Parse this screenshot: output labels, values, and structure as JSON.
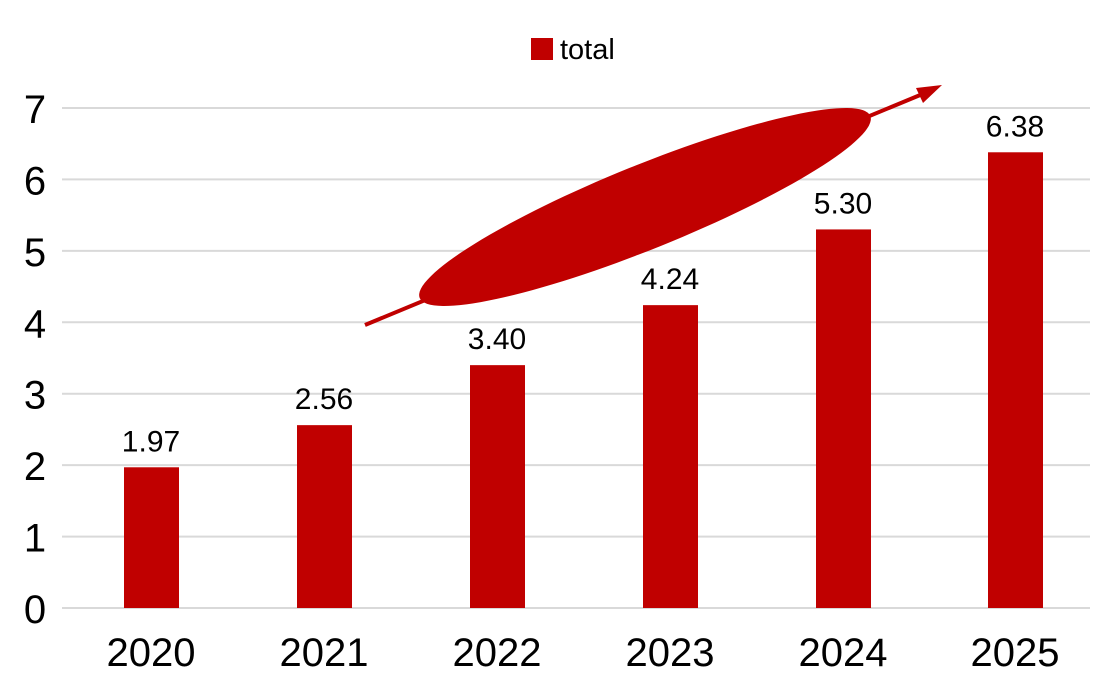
{
  "chart_data": {
    "type": "bar",
    "title": "",
    "xlabel": "",
    "ylabel": "",
    "categories": [
      "2020",
      "2021",
      "2022",
      "2023",
      "2024",
      "2025"
    ],
    "series": [
      {
        "name": "total",
        "values": [
          1.97,
          2.56,
          3.4,
          4.24,
          5.3,
          6.38
        ],
        "labels": [
          "1.97",
          "2.56",
          "3.40",
          "4.24",
          "5.30",
          "6.38"
        ]
      }
    ],
    "ylim": [
      0,
      7
    ],
    "yticks": [
      "0",
      "1",
      "2",
      "3",
      "4",
      "5",
      "6",
      "7"
    ],
    "grid": true,
    "legend": "top-center",
    "annotation": "upward trend arrow",
    "colors": {
      "bar": "#c00000",
      "grid": "#d9d9d9",
      "text": "#000000"
    }
  }
}
